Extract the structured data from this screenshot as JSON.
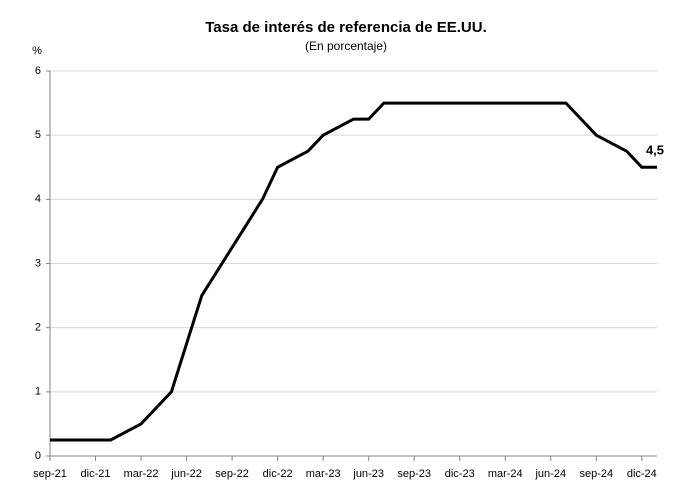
{
  "chart_data": {
    "type": "line",
    "title": "Tasa de interés de referencia de EE.UU.",
    "subtitle": "(En porcentaje)",
    "y_label": "%",
    "categories": [
      "sep-21",
      null,
      null,
      "dic-21",
      null,
      null,
      "mar-22",
      null,
      null,
      "jun-22",
      null,
      null,
      "sep-22",
      null,
      null,
      "dic-22",
      null,
      null,
      "mar-23",
      null,
      null,
      "jun-23",
      null,
      null,
      "sep-23",
      null,
      null,
      "dic-23",
      null,
      null,
      "mar-24",
      null,
      null,
      "jun-24",
      null,
      null,
      "sep-24",
      null,
      null,
      "dic-24",
      null
    ],
    "series": [
      {
        "color": "#000000",
        "values": [
          0.25,
          0.25,
          0.25,
          0.25,
          0.25,
          0.375,
          0.5,
          0.75,
          1.0,
          1.75,
          2.5,
          2.875,
          3.25,
          3.625,
          4.0,
          4.5,
          4.625,
          4.75,
          5.0,
          5.125,
          5.25,
          5.25,
          5.5,
          5.5,
          5.5,
          5.5,
          5.5,
          5.5,
          5.5,
          5.5,
          5.5,
          5.5,
          5.5,
          5.5,
          5.5,
          5.25,
          5.0,
          4.875,
          4.75,
          4.5,
          4.5
        ],
        "value_labels": [
          null,
          null,
          null,
          null,
          null,
          null,
          null,
          null,
          null,
          null,
          null,
          null,
          null,
          null,
          null,
          null,
          null,
          null,
          null,
          null,
          null,
          null,
          null,
          null,
          null,
          null,
          null,
          null,
          null,
          null,
          null,
          null,
          null,
          null,
          null,
          null,
          null,
          null,
          null,
          null,
          "4,5"
        ]
      }
    ],
    "ylim": [
      0,
      6
    ],
    "yticks": [
      0,
      1,
      2,
      3,
      4,
      5,
      6
    ],
    "grid": true
  }
}
